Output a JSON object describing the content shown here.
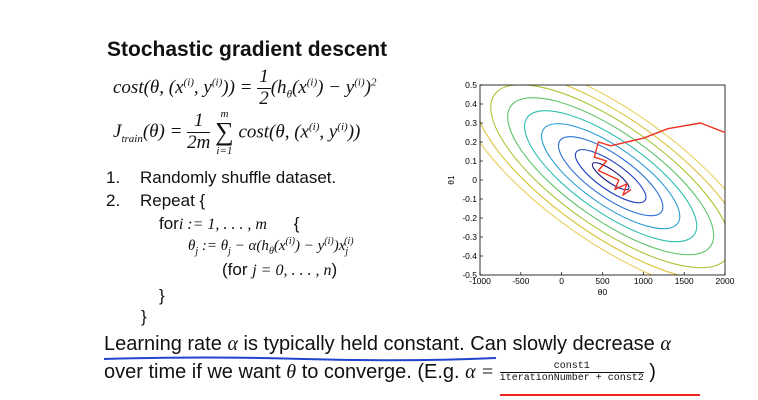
{
  "title": "Stochastic gradient descent",
  "eq1": {
    "lhs": "cost(θ, (x",
    "sup_i": "(i)",
    "comma": ", y",
    "rp": ")) =",
    "frac_n": "1",
    "frac_d": "2",
    "rhs": "(h",
    "theta_sub": "θ",
    "rhs2": "(x",
    "rhs3": ") − y",
    "rhs4": ")",
    "sq": "2"
  },
  "eq2": {
    "lhs": "J",
    "sub": "train",
    "lhs2": "(θ) =",
    "frac_n": "1",
    "frac_d": "2m",
    "sum_top": "m",
    "sum_bot": "i=1",
    "sigma": "∑",
    "rhs": "cost(θ, (x",
    "rhs2": ", y",
    "rhs3": "))"
  },
  "steps": {
    "s1_num": "1.",
    "s1_text": "Randomly shuffle dataset.",
    "s2_num": "2.",
    "s2_text": "Repeat {",
    "for_text": "for",
    "for_math": "i := 1, . . . , m",
    "for_brace": "{",
    "update": "θ",
    "update_sub": "j",
    "update_rest": ":= θ",
    "update_rest2": "− α(h",
    "update_rest3": "(x",
    "update_rest4": ") − y",
    "update_rest5": ")x",
    "for_j_pre": "(for",
    "for_j_math": "j = 0, . . . , n",
    "for_j_post": ")",
    "close1": "}",
    "close2": "}"
  },
  "bottom": {
    "line1_a": "Learning rate",
    "alpha": "α",
    "line1_b": "is typically held constant. Can slowly decrease",
    "line2_a": "over time if we want",
    "theta": "θ",
    "line2_b": "to converge. (E.g.",
    "alpha_eq": "α =",
    "frac_num": "const1",
    "frac_den": "iterationNumber + const2",
    "close": ")"
  },
  "chart_data": {
    "type": "contour",
    "title": "",
    "xlabel": "θ0",
    "ylabel": "θ1",
    "xlim": [
      -1000,
      2000
    ],
    "ylim": [
      -0.5,
      0.5
    ],
    "xticks": [
      "-1000",
      "-500",
      "0",
      "500",
      "1000",
      "1500",
      "2000"
    ],
    "yticks": [
      "0.5",
      "0.4",
      "0.3",
      "0.2",
      "0.1",
      "0",
      "-0.1",
      "-0.2",
      "-0.3",
      "-0.4",
      "-0.5"
    ],
    "minimum": {
      "x": 600,
      "y": 0.02
    },
    "levels": 9,
    "sgd_path": [
      [
        2000,
        0.25
      ],
      [
        1700,
        0.3
      ],
      [
        1300,
        0.27
      ],
      [
        1000,
        0.22
      ],
      [
        600,
        0.18
      ],
      [
        450,
        0.2
      ],
      [
        400,
        0.12
      ],
      [
        550,
        0.1
      ],
      [
        450,
        0.05
      ],
      [
        600,
        0.02
      ],
      [
        700,
        0.0
      ],
      [
        650,
        -0.05
      ],
      [
        800,
        -0.02
      ],
      [
        750,
        -0.08
      ],
      [
        850,
        -0.05
      ]
    ]
  },
  "colors": {
    "path": "#ee3322",
    "underline_blue": "#2244cc",
    "underline_red": "#ee2222",
    "text": "#111111"
  }
}
